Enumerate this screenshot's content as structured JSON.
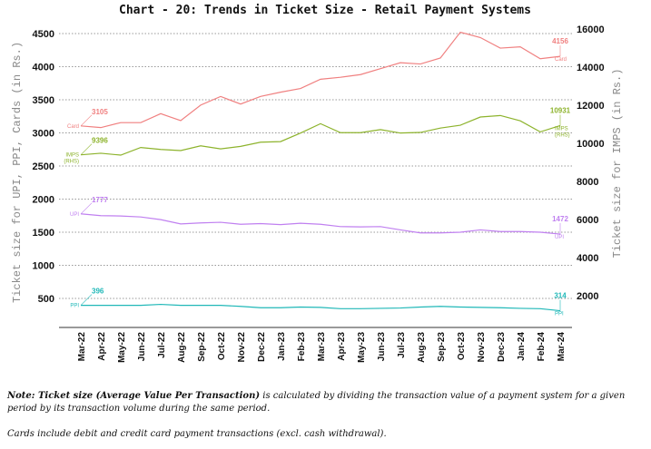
{
  "chart_data": {
    "type": "line",
    "title": "Chart - 20: Trends in Ticket Size - Retail Payment Systems",
    "ylabel": "Ticket size for UPI, PPI, Cards (in Rs.)",
    "ylabel_right": "Ticket size for IMPS (in Rs.)",
    "ylim": [
      0,
      4500
    ],
    "ylim_right": [
      0,
      16000
    ],
    "yticks": [
      500,
      1000,
      1500,
      2000,
      2500,
      3000,
      3500,
      4000,
      4500
    ],
    "yticks_right": [
      2000,
      4000,
      6000,
      8000,
      10000,
      12000,
      14000,
      16000
    ],
    "grid": true,
    "categories": [
      "Mar-22",
      "Apr-22",
      "May-22",
      "Jun-22",
      "Jul-22",
      "Aug-22",
      "Sep-22",
      "Oct-22",
      "Nov-22",
      "Dec-22",
      "Jan-23",
      "Feb-23",
      "Mar-23",
      "Apr-23",
      "May-23",
      "Jun-23",
      "Jul-23",
      "Aug-23",
      "Sep-23",
      "Oct-23",
      "Nov-23",
      "Dec-23",
      "Jan-24",
      "Feb-24",
      "Mar-24"
    ],
    "series": [
      {
        "name": "Card",
        "start_label": "Card",
        "end_label": "Card",
        "axis": "left",
        "color": "#f08080",
        "values": [
          3105,
          3080,
          3155,
          3155,
          3290,
          3185,
          3420,
          3550,
          3435,
          3550,
          3615,
          3670,
          3810,
          3840,
          3880,
          3970,
          4060,
          4040,
          4130,
          4520,
          4440,
          4280,
          4300,
          4120,
          4156
        ],
        "start_value": "3105",
        "end_value": "4156"
      },
      {
        "name": "IMPS (RHS)",
        "start_label": "IMPS (RHS)",
        "end_label": "IMPS (RHS)",
        "axis": "right",
        "color": "#8db32c",
        "values": [
          9396,
          9480,
          9380,
          9780,
          9680,
          9620,
          9870,
          9710,
          9840,
          10060,
          10090,
          10540,
          11030,
          10560,
          10560,
          10720,
          10540,
          10570,
          10800,
          10950,
          11380,
          11460,
          11180,
          10600,
          10931
        ],
        "start_value": "9396",
        "end_value": "10931"
      },
      {
        "name": "UPI",
        "start_label": "UPI",
        "end_label": "UPI",
        "axis": "left",
        "color": "#c080f0",
        "values": [
          1777,
          1750,
          1745,
          1730,
          1690,
          1625,
          1640,
          1650,
          1620,
          1630,
          1615,
          1635,
          1620,
          1585,
          1580,
          1585,
          1535,
          1490,
          1490,
          1500,
          1535,
          1510,
          1510,
          1500,
          1472
        ],
        "start_value": "1777",
        "end_value": "1472"
      },
      {
        "name": "PPI",
        "start_label": "PPI",
        "end_label": "PPI",
        "axis": "left",
        "color": "#20b8b8",
        "values": [
          396,
          396,
          396,
          396,
          410,
          396,
          396,
          396,
          380,
          360,
          360,
          370,
          365,
          345,
          345,
          350,
          355,
          370,
          380,
          370,
          365,
          360,
          350,
          345,
          314
        ],
        "start_value": "396",
        "end_value": "314"
      }
    ]
  },
  "notes": {
    "note_bold": "Note: Ticket size (Average Value Per Transaction)",
    "note_rest": " is calculated by dividing the transaction value of a payment system for a given period by its transaction volume during the same period.",
    "cards_note": "Cards include debit and credit card payment transactions (excl. cash withdrawal)."
  }
}
